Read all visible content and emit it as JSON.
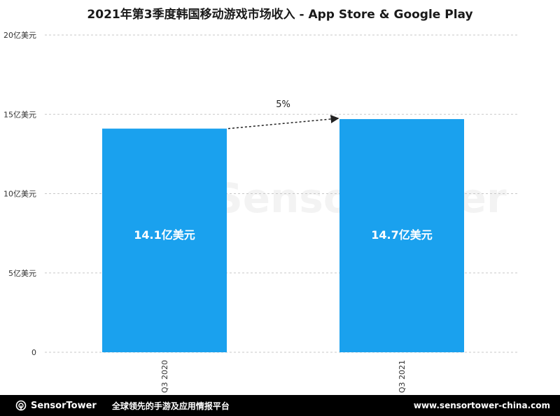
{
  "chart_data": {
    "type": "bar",
    "title": "2021年第3季度韩国移动游戏市场收入 - App Store & Google Play",
    "categories": [
      "Q3 2020",
      "Q3 2021"
    ],
    "values": [
      14.1,
      14.7
    ],
    "value_labels": [
      "14.1亿美元",
      "14.7亿美元"
    ],
    "unit": "亿美元",
    "ylim": [
      0,
      20
    ],
    "y_ticks": [
      {
        "value": 0,
        "label": "0"
      },
      {
        "value": 5,
        "label": "5亿美元"
      },
      {
        "value": 10,
        "label": "10亿美元"
      },
      {
        "value": 15,
        "label": "15亿美元"
      },
      {
        "value": 20,
        "label": "20亿美元"
      }
    ],
    "grid": true,
    "annotation": {
      "text": "5%",
      "from": "Q3 2020",
      "to": "Q3 2021"
    },
    "bar_color": "#1aa1ee"
  },
  "watermark": "SensorTower",
  "footer": {
    "brand": "SensorTower",
    "slogan": "全球领先的手游及应用情报平台",
    "url": "www.sensortower-china.com"
  }
}
